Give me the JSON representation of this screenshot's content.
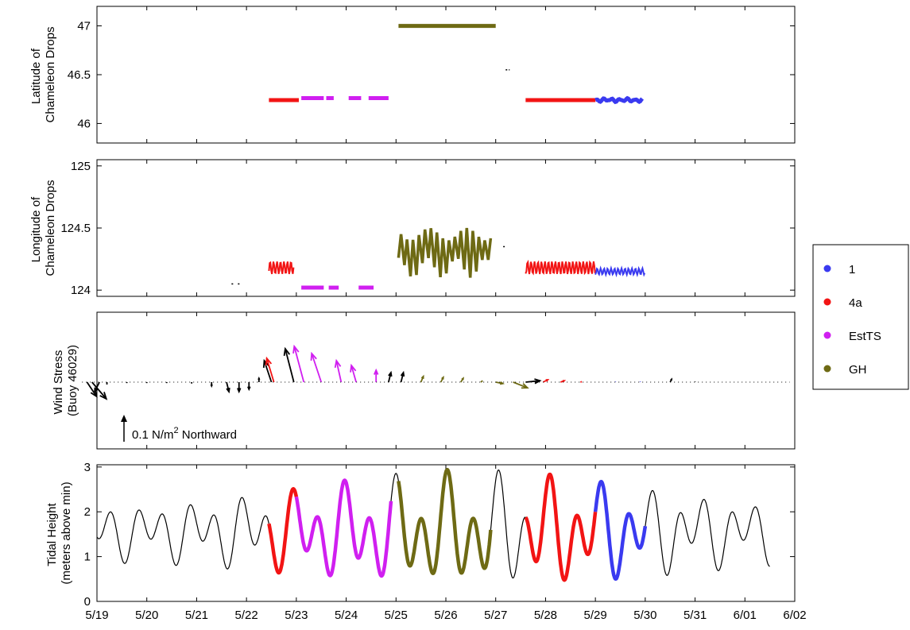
{
  "chart_data": {
    "type": "scatter",
    "colors": {
      "1": "#3a3af0",
      "4a": "#f21414",
      "EstTS": "#d01ff0",
      "GH": "#6e6a14",
      "none": "#000000"
    },
    "legend": {
      "entries": [
        "1",
        "4a",
        "EstTS",
        "GH"
      ],
      "placement": "right"
    },
    "x_axis": {
      "range": [
        "5/19",
        "6/02"
      ],
      "tick_labels": [
        "5/19",
        "5/20",
        "5/21",
        "5/22",
        "5/23",
        "5/24",
        "5/25",
        "5/26",
        "5/27",
        "5/28",
        "5/29",
        "5/30",
        "5/31",
        "6/01",
        "6/02"
      ]
    },
    "panels": [
      {
        "ylabel": [
          "Latitude of",
          "Chameleon Drops"
        ],
        "ylim": [
          45.8,
          47.2
        ],
        "yticks": [
          46,
          46.5,
          47
        ],
        "segments": [
          {
            "series": "4a",
            "x": [
              3.45,
              4.05
            ],
            "y": 46.24
          },
          {
            "series": "EstTS",
            "x": [
              4.1,
              4.55
            ],
            "y": 46.26
          },
          {
            "series": "EstTS",
            "x": [
              4.6,
              4.75
            ],
            "y": 46.26
          },
          {
            "series": "EstTS",
            "x": [
              5.05,
              5.3
            ],
            "y": 46.26
          },
          {
            "series": "EstTS",
            "x": [
              5.45,
              5.85
            ],
            "y": 46.26
          },
          {
            "series": "GH",
            "x": [
              6.05,
              8.0
            ],
            "y": 47.0
          },
          {
            "series": "none",
            "x": [
              8.2,
              8.28
            ],
            "y": 46.55
          },
          {
            "series": "4a",
            "x": [
              8.6,
              10.0
            ],
            "y": 46.24
          },
          {
            "series": "1",
            "x": [
              10.0,
              10.95
            ],
            "y": 46.24
          }
        ]
      },
      {
        "ylabel": [
          "Longitude of",
          "Chameleon Drops"
        ],
        "ylim": [
          123.95,
          125.05
        ],
        "yticks": [
          124,
          124.5,
          125
        ],
        "segments": [
          {
            "series": "none",
            "x": [
              2.7,
              2.9
            ],
            "y": 124.05
          },
          {
            "series": "4a",
            "x": [
              3.45,
              3.95
            ],
            "y": 124.18
          },
          {
            "series": "EstTS",
            "x": [
              4.1,
              4.55
            ],
            "y": 124.02
          },
          {
            "series": "EstTS",
            "x": [
              4.65,
              4.85
            ],
            "y": 124.02
          },
          {
            "series": "EstTS",
            "x": [
              5.25,
              5.55
            ],
            "y": 124.02
          },
          {
            "series": "GH",
            "x": [
              6.05,
              7.95
            ],
            "y": 124.3
          },
          {
            "series": "none",
            "x": [
              8.15,
              8.25
            ],
            "y": 124.35
          },
          {
            "series": "4a",
            "x": [
              8.6,
              10.0
            ],
            "y": 124.18
          },
          {
            "series": "1",
            "x": [
              10.0,
              11.0
            ],
            "y": 124.15
          }
        ]
      },
      {
        "ylabel": [
          "Wind Stress",
          "(Buoy 46029)"
        ],
        "scale_label": "0.1 N/m",
        "scale_sup": "2",
        "scale_suffix": " Northward",
        "ylim": [
          -0.09,
          0.12
        ],
        "arrows": [
          {
            "x": -0.2,
            "u": 0.02,
            "v": -0.03,
            "s": "none"
          },
          {
            "x": -0.1,
            "u": 0.03,
            "v": -0.035,
            "s": "none"
          },
          {
            "x": 0.05,
            "u": -0.01,
            "v": -0.02,
            "s": "none"
          },
          {
            "x": 0.2,
            "u": 0,
            "v": -0.005,
            "s": "none"
          },
          {
            "x": 0.6,
            "u": 0,
            "v": -0.002,
            "s": "none"
          },
          {
            "x": 1.0,
            "u": 0,
            "v": -0.002,
            "s": "none"
          },
          {
            "x": 1.4,
            "u": 0,
            "v": -0.002,
            "s": "none"
          },
          {
            "x": 1.9,
            "u": 0,
            "v": -0.003,
            "s": "none"
          },
          {
            "x": 2.3,
            "u": 0,
            "v": -0.008,
            "s": "none"
          },
          {
            "x": 2.6,
            "u": 0.005,
            "v": -0.02,
            "s": "none"
          },
          {
            "x": 2.85,
            "u": 0,
            "v": -0.02,
            "s": "none"
          },
          {
            "x": 3.05,
            "u": 0,
            "v": -0.015,
            "s": "none"
          },
          {
            "x": 3.25,
            "u": 0,
            "v": 0.008,
            "s": "none"
          },
          {
            "x": 3.5,
            "u": -0.015,
            "v": 0.045,
            "s": "none"
          },
          {
            "x": 3.55,
            "u": -0.015,
            "v": 0.05,
            "s": "4a"
          },
          {
            "x": 3.95,
            "u": -0.018,
            "v": 0.07,
            "s": "none"
          },
          {
            "x": 4.15,
            "u": -0.02,
            "v": 0.075,
            "s": "EstTS"
          },
          {
            "x": 4.5,
            "u": -0.02,
            "v": 0.06,
            "s": "EstTS"
          },
          {
            "x": 4.9,
            "u": -0.01,
            "v": 0.045,
            "s": "EstTS"
          },
          {
            "x": 5.2,
            "u": -0.01,
            "v": 0.035,
            "s": "EstTS"
          },
          {
            "x": 5.6,
            "u": 0,
            "v": 0.025,
            "s": "EstTS"
          },
          {
            "x": 5.85,
            "u": 0.005,
            "v": 0.02,
            "s": "none"
          },
          {
            "x": 6.1,
            "u": 0.005,
            "v": 0.02,
            "s": "none"
          },
          {
            "x": 6.5,
            "u": 0.005,
            "v": 0.012,
            "s": "GH"
          },
          {
            "x": 6.9,
            "u": 0.005,
            "v": 0.01,
            "s": "GH"
          },
          {
            "x": 7.3,
            "u": 0.005,
            "v": 0.008,
            "s": "GH"
          },
          {
            "x": 7.7,
            "u": 0.004,
            "v": 0.003,
            "s": "GH"
          },
          {
            "x": 8.0,
            "u": 0.015,
            "v": -0.003,
            "s": "GH"
          },
          {
            "x": 8.35,
            "u": 0.03,
            "v": -0.012,
            "s": "GH"
          },
          {
            "x": 8.6,
            "u": 0.03,
            "v": 0.003,
            "s": "none"
          },
          {
            "x": 8.95,
            "u": 0.01,
            "v": 0.005,
            "s": "4a"
          },
          {
            "x": 9.3,
            "u": 0.008,
            "v": 0.003,
            "s": "4a"
          },
          {
            "x": 9.7,
            "u": 0.003,
            "v": 0.001,
            "s": "4a"
          },
          {
            "x": 10.4,
            "u": 0,
            "v": 0.001,
            "s": "1"
          },
          {
            "x": 10.9,
            "u": 0,
            "v": 0.001,
            "s": "1"
          },
          {
            "x": 11.5,
            "u": 0.003,
            "v": 0.006,
            "s": "none"
          },
          {
            "x": 12.0,
            "u": 0,
            "v": 0.001,
            "s": "none"
          }
        ],
        "segments": []
      },
      {
        "ylabel": [
          "Tidal Height",
          "(meters above min)"
        ],
        "ylim": [
          0,
          3.05
        ],
        "yticks": [
          0,
          1,
          2,
          3
        ],
        "segments": [
          {
            "series": "none",
            "x": [
              -0.5,
              3.45
            ]
          },
          {
            "series": "4a",
            "x": [
              3.45,
              4.0
            ]
          },
          {
            "series": "EstTS",
            "x": [
              4.0,
              5.9
            ]
          },
          {
            "series": "none",
            "x": [
              5.9,
              6.05
            ]
          },
          {
            "series": "GH",
            "x": [
              6.05,
              7.9
            ]
          },
          {
            "series": "none",
            "x": [
              7.9,
              8.6
            ]
          },
          {
            "series": "4a",
            "x": [
              8.6,
              10.0
            ]
          },
          {
            "series": "1",
            "x": [
              10.0,
              11.0
            ]
          },
          {
            "series": "none",
            "x": [
              11.0,
              13.5
            ]
          }
        ]
      }
    ]
  }
}
